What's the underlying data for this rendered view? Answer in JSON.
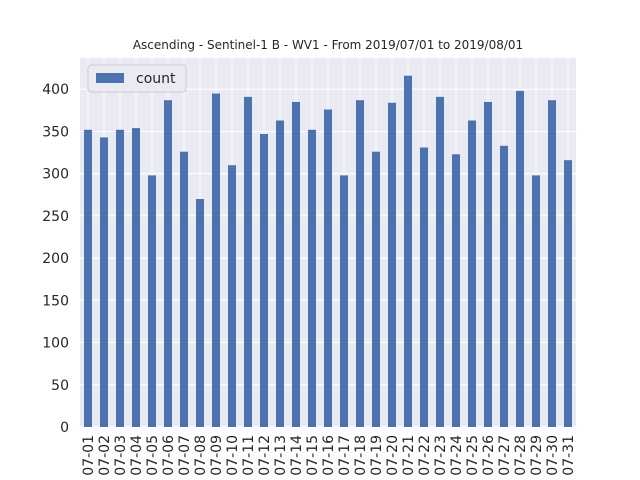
{
  "chart_data": {
    "type": "bar",
    "title": "Ascending - Sentinel-1 B - WV1 - From 2019/07/01 to 2019/08/01",
    "xlabel": "",
    "ylabel": "",
    "categories": [
      "07-01",
      "07-02",
      "07-03",
      "07-04",
      "07-05",
      "07-06",
      "07-07",
      "07-08",
      "07-09",
      "07-10",
      "07-11",
      "07-12",
      "07-13",
      "07-14",
      "07-15",
      "07-16",
      "07-17",
      "07-18",
      "07-19",
      "07-20",
      "07-21",
      "07-22",
      "07-23",
      "07-24",
      "07-25",
      "07-26",
      "07-27",
      "07-28",
      "07-29",
      "07-30",
      "07-31"
    ],
    "series": [
      {
        "name": "count",
        "values": [
          352,
          343,
          352,
          354,
          298,
          387,
          326,
          270,
          395,
          310,
          391,
          347,
          363,
          385,
          352,
          376,
          298,
          387,
          326,
          384,
          416,
          331,
          391,
          323,
          363,
          385,
          333,
          398,
          298,
          387,
          316
        ]
      }
    ],
    "yticks": [
      0,
      50,
      100,
      150,
      200,
      250,
      300,
      350,
      400
    ],
    "ylim": [
      0,
      437
    ],
    "grid": true,
    "legend_position": "upper-left",
    "colors": {
      "bar": "#4c72b0",
      "background": "#eaeaf2",
      "grid": "#ffffff"
    }
  }
}
